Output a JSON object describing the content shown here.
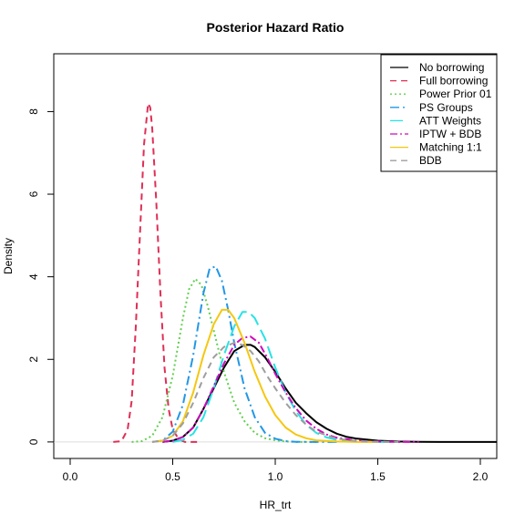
{
  "chart_data": {
    "type": "line",
    "title": "Posterior Hazard Ratio",
    "xlabel": "HR_trt",
    "ylabel": "Density",
    "xlim": [
      -0.08,
      2.08
    ],
    "ylim": [
      -0.4,
      9.4
    ],
    "xticks": [
      0.0,
      0.5,
      1.0,
      1.5,
      2.0
    ],
    "xtick_labels": [
      "0.0",
      "0.5",
      "1.0",
      "1.5",
      "2.0"
    ],
    "yticks": [
      0,
      2,
      4,
      6,
      8
    ],
    "ytick_labels": [
      "0",
      "2",
      "4",
      "6",
      "8"
    ],
    "grid": false,
    "legend_position": "top-right",
    "series": [
      {
        "name": "No borrowing",
        "color": "#000000",
        "dash": "",
        "width": 2,
        "x": [
          0.45,
          0.5,
          0.55,
          0.6,
          0.65,
          0.7,
          0.75,
          0.8,
          0.85,
          0.88,
          0.9,
          0.95,
          1.0,
          1.05,
          1.1,
          1.15,
          1.2,
          1.25,
          1.3,
          1.35,
          1.4,
          1.5,
          1.6,
          1.7,
          1.8,
          2.08
        ],
        "y": [
          0.0,
          0.03,
          0.12,
          0.35,
          0.8,
          1.3,
          1.8,
          2.2,
          2.35,
          2.35,
          2.3,
          2.05,
          1.7,
          1.3,
          0.95,
          0.7,
          0.48,
          0.32,
          0.2,
          0.12,
          0.08,
          0.03,
          0.01,
          0.003,
          0.0,
          0.0
        ]
      },
      {
        "name": "Full borrowing",
        "color": "#df2f55",
        "dash": "7,5",
        "width": 2,
        "x": [
          0.21,
          0.25,
          0.28,
          0.3,
          0.32,
          0.34,
          0.36,
          0.38,
          0.39,
          0.4,
          0.42,
          0.44,
          0.46,
          0.48,
          0.5,
          0.53,
          0.56,
          0.62
        ],
        "y": [
          0.0,
          0.02,
          0.3,
          1.0,
          2.8,
          5.0,
          7.2,
          8.2,
          8.1,
          7.6,
          5.8,
          3.6,
          1.8,
          0.8,
          0.3,
          0.06,
          0.0,
          0.0
        ]
      },
      {
        "name": "Power Prior 01",
        "color": "#61d04f",
        "dash": "2,3",
        "width": 2,
        "x": [
          0.3,
          0.35,
          0.4,
          0.45,
          0.5,
          0.55,
          0.58,
          0.61,
          0.64,
          0.67,
          0.7,
          0.75,
          0.8,
          0.85,
          0.9,
          0.95,
          1.0,
          1.05,
          1.1,
          1.2
        ],
        "y": [
          0.0,
          0.02,
          0.15,
          0.6,
          1.6,
          3.0,
          3.7,
          3.95,
          3.8,
          3.3,
          2.7,
          1.7,
          0.95,
          0.5,
          0.22,
          0.09,
          0.04,
          0.01,
          0.0,
          0.0
        ]
      },
      {
        "name": "PS Groups",
        "color": "#2297e6",
        "dash": "10,4,2,4",
        "width": 2,
        "x": [
          0.4,
          0.45,
          0.5,
          0.55,
          0.6,
          0.65,
          0.68,
          0.71,
          0.74,
          0.77,
          0.8,
          0.85,
          0.9,
          0.95,
          1.0,
          1.05,
          1.1,
          1.2,
          1.3
        ],
        "y": [
          0.0,
          0.03,
          0.25,
          0.9,
          2.1,
          3.6,
          4.2,
          4.25,
          3.9,
          3.2,
          2.4,
          1.3,
          0.6,
          0.22,
          0.08,
          0.02,
          0.005,
          0.0,
          0.0
        ]
      },
      {
        "name": "ATT Weights",
        "color": "#28e2e5",
        "dash": "14,6",
        "width": 2,
        "x": [
          0.5,
          0.55,
          0.6,
          0.65,
          0.7,
          0.75,
          0.8,
          0.84,
          0.87,
          0.9,
          0.95,
          1.0,
          1.05,
          1.1,
          1.15,
          1.2,
          1.25,
          1.3,
          1.4,
          1.5,
          1.6
        ],
        "y": [
          0.0,
          0.05,
          0.2,
          0.6,
          1.3,
          2.1,
          2.8,
          3.15,
          3.15,
          3.0,
          2.5,
          1.8,
          1.2,
          0.75,
          0.42,
          0.22,
          0.11,
          0.05,
          0.01,
          0.0,
          0.0
        ]
      },
      {
        "name": "IPTW + BDB",
        "color": "#cd0bbc",
        "dash": "8,3,2,3",
        "width": 2,
        "x": [
          0.45,
          0.5,
          0.55,
          0.6,
          0.65,
          0.7,
          0.75,
          0.8,
          0.84,
          0.88,
          0.92,
          0.96,
          1.0,
          1.05,
          1.1,
          1.15,
          1.2,
          1.25,
          1.3,
          1.4,
          1.5,
          1.6,
          1.7
        ],
        "y": [
          0.0,
          0.03,
          0.12,
          0.35,
          0.8,
          1.35,
          1.9,
          2.35,
          2.52,
          2.55,
          2.4,
          2.05,
          1.65,
          1.2,
          0.82,
          0.52,
          0.32,
          0.18,
          0.1,
          0.03,
          0.01,
          0.0,
          0.0
        ]
      },
      {
        "name": "Matching 1:1",
        "color": "#f5c710",
        "dash": "",
        "width": 2,
        "x": [
          0.4,
          0.45,
          0.5,
          0.55,
          0.6,
          0.65,
          0.7,
          0.74,
          0.77,
          0.8,
          0.85,
          0.9,
          0.95,
          1.0,
          1.05,
          1.1,
          1.15,
          1.2,
          1.3,
          1.4,
          1.5
        ],
        "y": [
          0.0,
          0.03,
          0.15,
          0.5,
          1.2,
          2.1,
          2.85,
          3.2,
          3.2,
          3.0,
          2.4,
          1.7,
          1.1,
          0.65,
          0.35,
          0.18,
          0.09,
          0.04,
          0.01,
          0.0,
          0.0
        ]
      },
      {
        "name": "BDB",
        "color": "#9e9e9e",
        "dash": "7,5",
        "width": 2,
        "x": [
          0.4,
          0.45,
          0.5,
          0.55,
          0.6,
          0.65,
          0.7,
          0.75,
          0.8,
          0.84,
          0.88,
          0.92,
          0.96,
          1.0,
          1.05,
          1.1,
          1.15,
          1.2,
          1.3,
          1.4,
          1.5,
          1.6
        ],
        "y": [
          0.0,
          0.03,
          0.15,
          0.45,
          0.95,
          1.55,
          2.05,
          2.3,
          2.4,
          2.35,
          2.2,
          1.95,
          1.6,
          1.3,
          0.95,
          0.65,
          0.42,
          0.25,
          0.08,
          0.02,
          0.005,
          0.0
        ]
      }
    ]
  }
}
